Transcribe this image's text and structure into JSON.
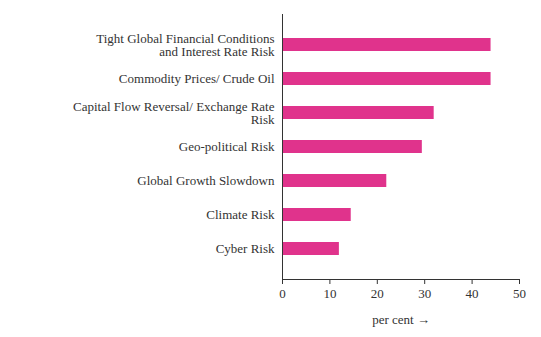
{
  "chart_data": {
    "type": "bar",
    "orientation": "horizontal",
    "categories": [
      "Tight Global Financial Conditions and Interest Rate Risk",
      "Commodity Prices/ Crude Oil",
      "Capital Flow Reversal/ Exchange Rate Risk",
      "Geo-political Risk",
      "Global Growth Slowdown",
      "Climate Risk",
      "Cyber Risk"
    ],
    "values": [
      44,
      44,
      32,
      29.5,
      22,
      14.5,
      12
    ],
    "color": "#e0338c",
    "x_label": "per cent",
    "xlim": [
      0,
      50
    ],
    "xticks": [
      0,
      10,
      20,
      30,
      40,
      50
    ],
    "grid": false
  }
}
